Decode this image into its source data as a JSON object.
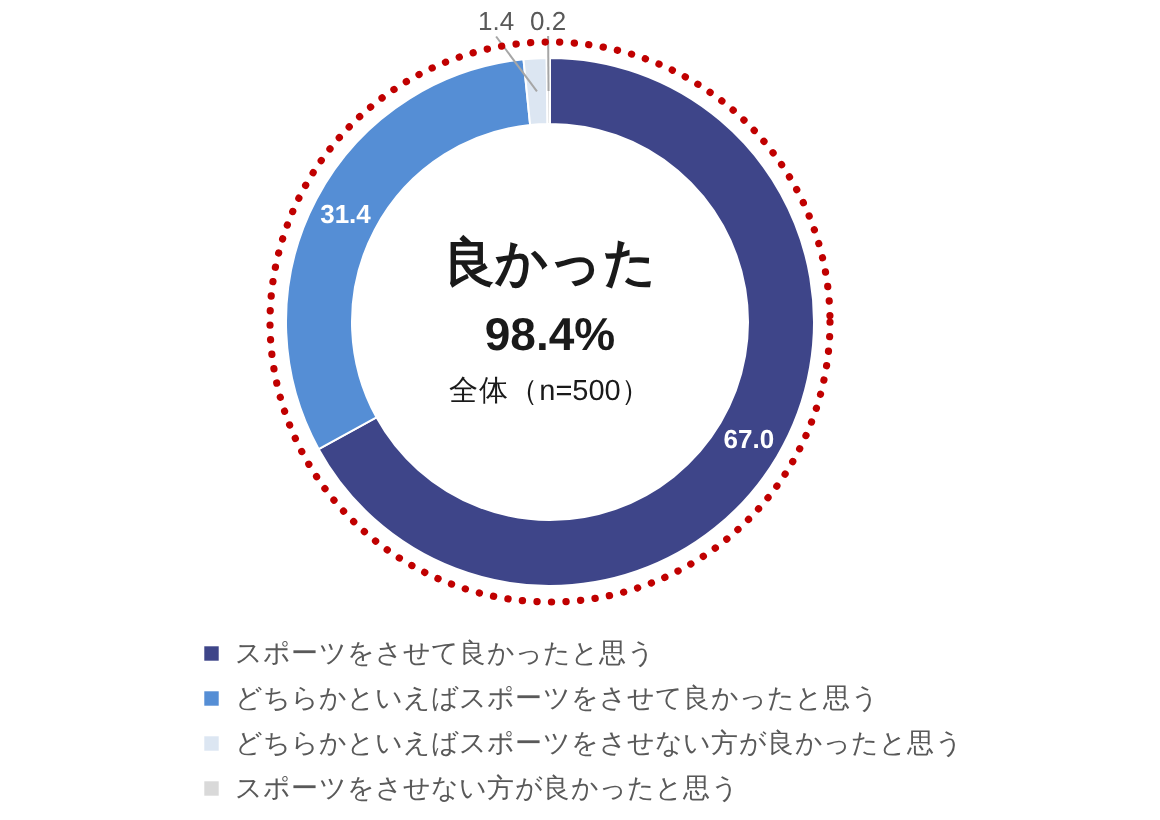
{
  "chart_data": {
    "type": "donut",
    "categories": [
      "スポーツをさせて良かったと思う",
      "どちらかといえばスポーツをさせて良かったと思う",
      "どちらかといえばスポーツをさせない方が良かったと思う",
      "スポーツをさせない方が良かったと思う"
    ],
    "values": [
      67.0,
      31.4,
      1.4,
      0.2
    ],
    "colors": [
      "#3e4589",
      "#558ed5",
      "#dce6f2",
      "#d9d9d9"
    ],
    "value_labels": [
      "67.0",
      "31.4",
      "1.4",
      "0.2"
    ],
    "annotations": [
      "良かった",
      "98.4%",
      "全体（n=500）"
    ],
    "legend": "bottom"
  }
}
